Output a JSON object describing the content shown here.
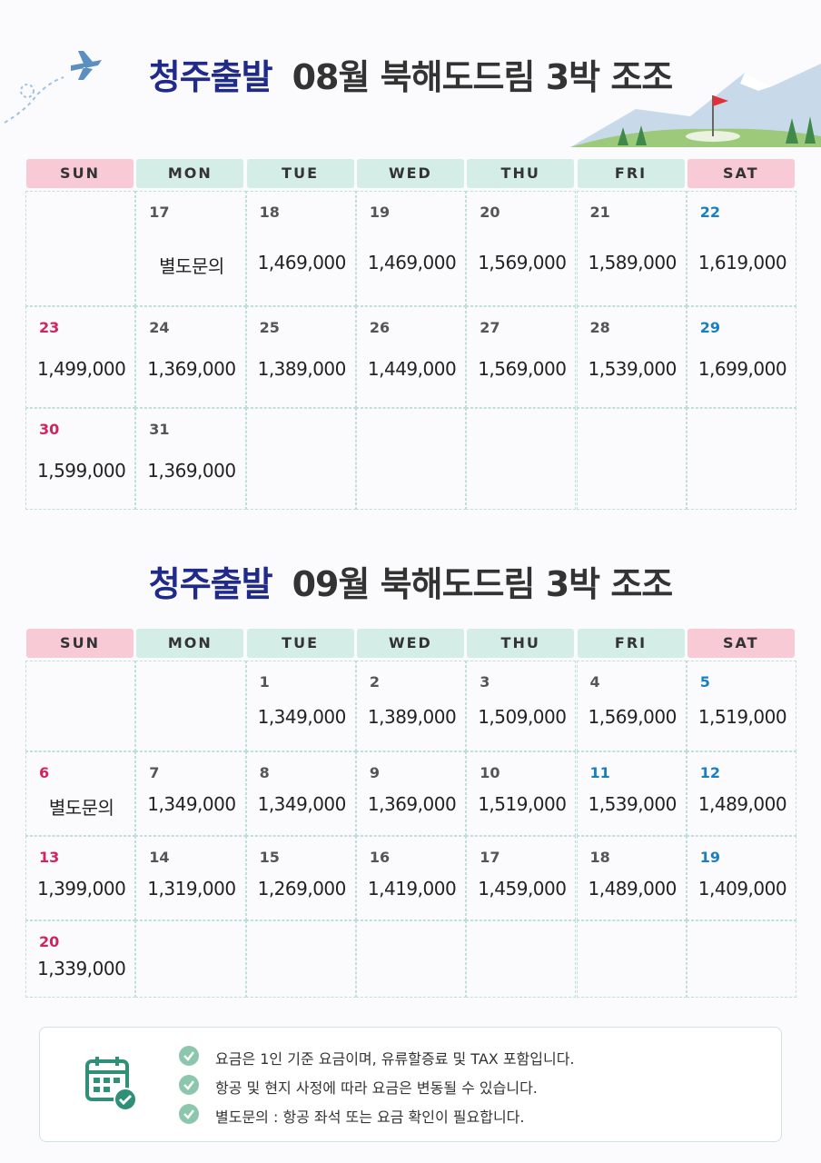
{
  "calendars": [
    {
      "title_highlight": "청주출발",
      "title_rest": "08월 북해도드림 3박 조조",
      "weekdays": [
        "SUN",
        "MON",
        "TUE",
        "WED",
        "THU",
        "FRI",
        "SAT"
      ],
      "weeks": [
        [
          null,
          {
            "day": "17",
            "price": "별도문의"
          },
          {
            "day": "18",
            "price": "1,469,000"
          },
          {
            "day": "19",
            "price": "1,469,000"
          },
          {
            "day": "20",
            "price": "1,569,000"
          },
          {
            "day": "21",
            "price": "1,589,000"
          },
          {
            "day": "22",
            "price": "1,619,000"
          }
        ],
        [
          {
            "day": "23",
            "price": "1,499,000"
          },
          {
            "day": "24",
            "price": "1,369,000"
          },
          {
            "day": "25",
            "price": "1,389,000"
          },
          {
            "day": "26",
            "price": "1,449,000"
          },
          {
            "day": "27",
            "price": "1,569,000"
          },
          {
            "day": "28",
            "price": "1,539,000"
          },
          {
            "day": "29",
            "price": "1,699,000"
          }
        ],
        [
          {
            "day": "30",
            "price": "1,599,000"
          },
          {
            "day": "31",
            "price": "1,369,000"
          },
          null,
          null,
          null,
          null,
          null
        ]
      ]
    },
    {
      "title_highlight": "청주출발",
      "title_rest": "09월 북해도드림 3박 조조",
      "weekdays": [
        "SUN",
        "MON",
        "TUE",
        "WED",
        "THU",
        "FRI",
        "SAT"
      ],
      "weeks": [
        [
          null,
          null,
          {
            "day": "1",
            "price": "1,349,000"
          },
          {
            "day": "2",
            "price": "1,389,000"
          },
          {
            "day": "3",
            "price": "1,509,000"
          },
          {
            "day": "4",
            "price": "1,569,000"
          },
          {
            "day": "5",
            "price": "1,519,000"
          }
        ],
        [
          {
            "day": "6",
            "price": "별도문의"
          },
          {
            "day": "7",
            "price": "1,349,000"
          },
          {
            "day": "8",
            "price": "1,349,000"
          },
          {
            "day": "9",
            "price": "1,369,000"
          },
          {
            "day": "10",
            "price": "1,519,000"
          },
          {
            "day": "11",
            "price": "1,539,000",
            "color": "#1a7fc1"
          },
          {
            "day": "12",
            "price": "1,489,000"
          }
        ],
        [
          {
            "day": "13",
            "price": "1,399,000"
          },
          {
            "day": "14",
            "price": "1,319,000"
          },
          {
            "day": "15",
            "price": "1,269,000"
          },
          {
            "day": "16",
            "price": "1,419,000"
          },
          {
            "day": "17",
            "price": "1,459,000"
          },
          {
            "day": "18",
            "price": "1,489,000"
          },
          {
            "day": "19",
            "price": "1,409,000"
          }
        ],
        [
          {
            "day": "20",
            "price": "1,339,000"
          },
          null,
          null,
          null,
          null,
          null,
          null
        ]
      ]
    }
  ],
  "notes": [
    "요금은 1인 기준 요금이며, 유류할증료 및 TAX 포함입니다.",
    "항공 및 현지 사정에 따라 요금은 변동될 수 있습니다.",
    "별도문의 : 항공 좌석 또는 요금 확인이 필요합니다."
  ]
}
